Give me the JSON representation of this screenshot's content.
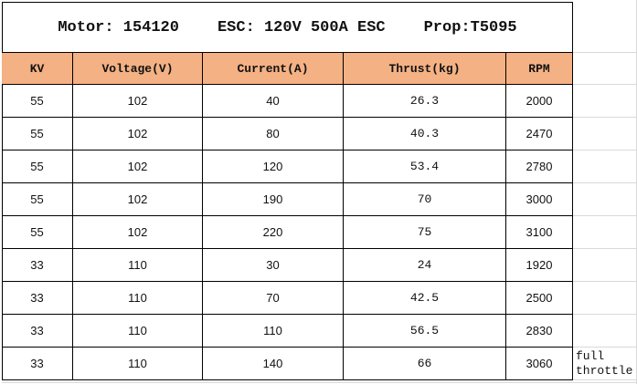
{
  "title": {
    "motor": "Motor: 154120",
    "esc": "ESC: 120V 500A ESC",
    "prop": "Prop:T5095"
  },
  "table": {
    "header": [
      "KV",
      "Voltage(V)",
      "Current(A)",
      "Thrust(kg)",
      "RPM"
    ],
    "rows": [
      [
        55,
        102,
        40,
        26.3,
        2000
      ],
      [
        55,
        102,
        80,
        40.3,
        2470
      ],
      [
        55,
        102,
        120,
        53.4,
        2780
      ],
      [
        55,
        102,
        190,
        70,
        3000
      ],
      [
        55,
        102,
        220,
        75,
        3100
      ],
      [
        33,
        110,
        30,
        24,
        1920
      ],
      [
        33,
        110,
        70,
        42.5,
        2500
      ],
      [
        33,
        110,
        110,
        56.5,
        2830
      ],
      [
        33,
        110,
        140,
        66,
        3060
      ]
    ]
  },
  "note": "full throttle"
}
